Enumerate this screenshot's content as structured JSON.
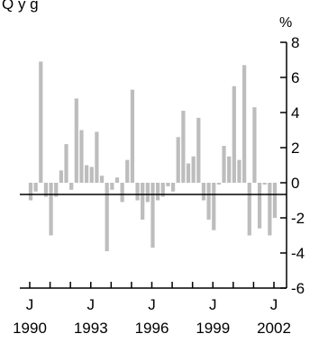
{
  "chart_data": {
    "type": "bar",
    "title_fragment": "Q  y   g",
    "ylabel": "%",
    "ylim": [
      -6,
      8
    ],
    "yticks": [
      "8",
      "6",
      "4",
      "2",
      "0",
      "-2",
      "-4",
      "-6"
    ],
    "x_month_label": "J",
    "x_major_years": [
      "1990",
      "1993",
      "1996",
      "1999",
      "2002"
    ],
    "x_start_year": 1990,
    "x_end_year": 2002.9,
    "grid": false,
    "bar_color": "#bdbdbd",
    "values": [
      -1.0,
      -0.5,
      6.9,
      -0.8,
      -3.0,
      -0.8,
      0.7,
      2.2,
      -0.4,
      4.8,
      3.0,
      1.0,
      0.9,
      2.9,
      0.4,
      -3.9,
      -0.4,
      0.3,
      -1.1,
      1.3,
      5.3,
      -1.0,
      -2.1,
      -1.1,
      -3.7,
      -1.0,
      -0.8,
      -0.2,
      -0.5,
      2.6,
      4.1,
      1.1,
      1.5,
      3.7,
      -1.0,
      -2.1,
      -2.7,
      -0.1,
      2.1,
      1.5,
      5.5,
      1.3,
      6.7,
      -3.0,
      4.3,
      -2.6,
      -0.1,
      -3.0,
      -2.0
    ]
  }
}
